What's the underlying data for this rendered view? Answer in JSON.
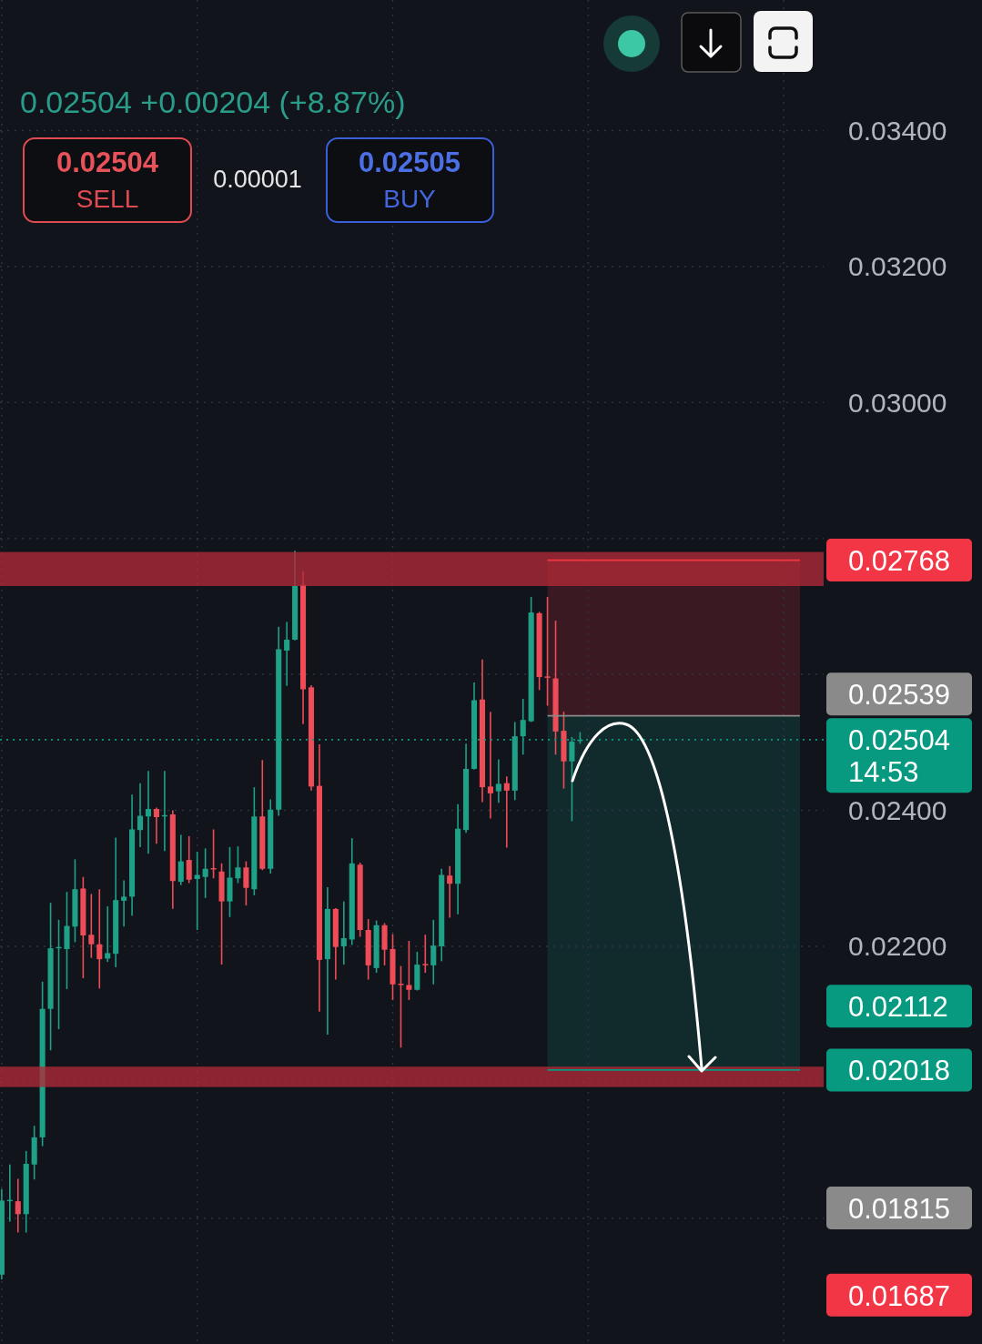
{
  "chart_data": {
    "type": "candlestick",
    "categories": [
      null,
      null,
      null,
      null,
      null,
      null,
      null,
      null,
      null,
      null,
      null,
      null,
      null,
      null,
      null,
      null,
      null,
      null,
      null,
      null,
      null,
      null,
      null,
      null,
      null,
      null,
      null,
      null,
      null,
      null,
      null,
      null,
      null,
      null,
      null,
      null,
      null,
      null,
      null,
      null,
      null,
      null,
      null,
      null,
      null,
      null,
      null,
      null,
      null,
      null,
      null,
      null,
      null,
      null,
      null,
      null,
      null,
      null,
      null,
      null,
      null,
      null,
      null,
      null,
      null,
      null,
      null,
      null,
      null,
      null,
      null,
      null,
      null,
      null,
      null,
      null,
      null,
      null,
      null,
      null,
      null,
      null,
      null,
      null,
      null,
      null,
      null,
      null,
      null,
      null,
      null,
      null,
      null,
      null,
      null,
      null,
      null,
      null,
      null,
      null,
      null
    ],
    "ohlc": [
      [
        0.01717,
        0.01843,
        0.0171,
        0.01826
      ],
      [
        0.01826,
        0.01879,
        0.01795,
        0.01827
      ],
      [
        0.01825,
        0.01858,
        0.01779,
        0.01806
      ],
      [
        0.01806,
        0.01899,
        0.01779,
        0.0188
      ],
      [
        0.01879,
        0.01936,
        0.01857,
        0.01919
      ],
      [
        0.01919,
        0.02148,
        0.01906,
        0.02108
      ],
      [
        0.02108,
        0.02264,
        0.02047,
        0.02197
      ],
      [
        0.02197,
        0.02239,
        0.02078,
        0.02199
      ],
      [
        0.02196,
        0.0228,
        0.02137,
        0.0223
      ],
      [
        0.02229,
        0.02328,
        0.02206,
        0.02284
      ],
      [
        0.02285,
        0.02302,
        0.02153,
        0.02216
      ],
      [
        0.02217,
        0.02277,
        0.02183,
        0.02203
      ],
      [
        0.02203,
        0.02284,
        0.02138,
        0.02181
      ],
      [
        0.02182,
        0.02259,
        0.02177,
        0.0219
      ],
      [
        0.02189,
        0.0236,
        0.02169,
        0.02268
      ],
      [
        0.02267,
        0.02297,
        0.02229,
        0.02273
      ],
      [
        0.02273,
        0.02423,
        0.02245,
        0.02372
      ],
      [
        0.02371,
        0.0244,
        0.02346,
        0.02392
      ],
      [
        0.02391,
        0.02458,
        0.02336,
        0.02402
      ],
      [
        0.02402,
        0.02404,
        0.02351,
        0.0239
      ],
      [
        0.02392,
        0.02458,
        0.0234,
        0.02393
      ],
      [
        0.02394,
        0.024,
        0.02255,
        0.02296
      ],
      [
        0.02295,
        0.02364,
        0.0229,
        0.02325
      ],
      [
        0.02327,
        0.02362,
        0.02293,
        0.02298
      ],
      [
        0.02299,
        0.02339,
        0.02224,
        0.02305
      ],
      [
        0.02302,
        0.02344,
        0.02271,
        0.02314
      ],
      [
        0.02315,
        0.02372,
        0.023,
        0.02313
      ],
      [
        0.0231,
        0.02322,
        0.02173,
        0.02266
      ],
      [
        0.02266,
        0.02346,
        0.02243,
        0.02301
      ],
      [
        0.023,
        0.02347,
        0.02293,
        0.02316
      ],
      [
        0.02316,
        0.02325,
        0.0226,
        0.02286
      ],
      [
        0.02284,
        0.02434,
        0.02275,
        0.02391
      ],
      [
        0.02391,
        0.02474,
        0.02312,
        0.02314
      ],
      [
        0.02314,
        0.02416,
        0.02307,
        0.02401
      ],
      [
        0.02401,
        0.0267,
        0.02392,
        0.02637
      ],
      [
        0.02635,
        0.02677,
        0.02583,
        0.02651
      ],
      [
        0.02651,
        0.02782,
        0.0265,
        0.0273
      ],
      [
        0.02732,
        0.02752,
        0.02527,
        0.02578
      ],
      [
        0.02581,
        0.02584,
        0.02429,
        0.02435
      ],
      [
        0.02436,
        0.02497,
        0.02104,
        0.0218
      ],
      [
        0.02181,
        0.02287,
        0.0207,
        0.02255
      ],
      [
        0.02255,
        0.02256,
        0.02151,
        0.02199
      ],
      [
        0.022,
        0.02266,
        0.02173,
        0.02212
      ],
      [
        0.0221,
        0.02359,
        0.02202,
        0.02322
      ],
      [
        0.0232,
        0.02323,
        0.02214,
        0.02224
      ],
      [
        0.02224,
        0.0224,
        0.02151,
        0.02172
      ],
      [
        0.02168,
        0.02238,
        0.02161,
        0.02231
      ],
      [
        0.02231,
        0.02234,
        0.02172,
        0.02195
      ],
      [
        0.02196,
        0.02218,
        0.02121,
        0.02144
      ],
      [
        0.02145,
        0.02171,
        0.02051,
        0.02143
      ],
      [
        0.02143,
        0.02208,
        0.02121,
        0.02136
      ],
      [
        0.02136,
        0.02192,
        0.02135,
        0.02173
      ],
      [
        0.02174,
        0.02217,
        0.02161,
        0.02172
      ],
      [
        0.02172,
        0.02239,
        0.02144,
        0.02201
      ],
      [
        0.022,
        0.02314,
        0.02178,
        0.02305
      ],
      [
        0.02304,
        0.02318,
        0.02242,
        0.02292
      ],
      [
        0.02292,
        0.02409,
        0.02247,
        0.02373
      ],
      [
        0.02371,
        0.02498,
        0.02367,
        0.02461
      ],
      [
        0.02461,
        0.02588,
        0.0246,
        0.02562
      ],
      [
        0.02563,
        0.02622,
        0.02412,
        0.02434
      ],
      [
        0.02435,
        0.02545,
        0.02388,
        0.02425
      ],
      [
        0.02428,
        0.02475,
        0.02411,
        0.02439
      ],
      [
        0.0244,
        0.0245,
        0.02345,
        0.02429
      ],
      [
        0.02429,
        0.0253,
        0.02415,
        0.02509
      ],
      [
        0.02509,
        0.02564,
        0.02482,
        0.02533
      ],
      [
        0.02531,
        0.02714,
        0.0253,
        0.02691
      ],
      [
        0.0269,
        0.02692,
        0.02577,
        0.02596
      ],
      [
        0.02597,
        0.02714,
        0.02554,
        0.02596
      ],
      [
        0.02594,
        0.02679,
        0.02482,
        0.02516
      ],
      [
        0.02517,
        0.02545,
        0.02432,
        0.02472
      ],
      [
        0.02472,
        0.02508,
        0.02384,
        0.02501
      ],
      [
        0.02503,
        0.02515,
        0.02498,
        0.02504
      ],
      null,
      null,
      null,
      null,
      null,
      null,
      null,
      null,
      null,
      null,
      null,
      null,
      null,
      null,
      null,
      null,
      null,
      null,
      null,
      null,
      null,
      null,
      null,
      null,
      null,
      null,
      null,
      null,
      null
    ],
    "colors": [
      "#1fa188",
      "#1fa188",
      "#ee4c57",
      "#1fa188",
      "#1fa188",
      "#1fa188",
      "#1fa188",
      "#1fa188",
      "#1fa188",
      "#1fa188",
      "#ee4c57",
      "#ee4c57",
      "#ee4c57",
      "#1fa188",
      "#1fa188",
      "#1fa188",
      "#1fa188",
      "#1fa188",
      "#1fa188",
      "#ee4c57",
      "#1fa188",
      "#ee4c57",
      "#1fa188",
      "#ee4c57",
      "#1fa188",
      "#1fa188",
      "#ee4c57",
      "#ee4c57",
      "#1fa188",
      "#1fa188",
      "#ee4c57",
      "#1fa188",
      "#ee4c57",
      "#1fa188",
      "#1fa188",
      "#1fa188",
      "#1fa188",
      "#ee4c57",
      "#ee4c57",
      "#ee4c57",
      "#1fa188",
      "#ee4c57",
      "#1fa188",
      "#1fa188",
      "#ee4c57",
      "#ee4c57",
      "#1fa188",
      "#ee4c57",
      "#ee4c57",
      "#ee4c57",
      "#ee4c57",
      "#1fa188",
      "#ee4c57",
      "#1fa188",
      "#1fa188",
      "#ee4c57",
      "#1fa188",
      "#1fa188",
      "#1fa188",
      "#ee4c57",
      "#ee4c57",
      "#1fa188",
      "#ee4c57",
      "#1fa188",
      "#1fa188",
      "#1fa188",
      "#ee4c57",
      "#ee4c57",
      "#ee4c57",
      "#ee4c57",
      "#1fa188",
      "#1fa188",
      null,
      null,
      null,
      null,
      null,
      null,
      null,
      null,
      null,
      null,
      null,
      null,
      null,
      null,
      null,
      null,
      null,
      null,
      null,
      null,
      null,
      null,
      null,
      null,
      null,
      null,
      null,
      null,
      null
    ],
    "ylim": [
      0.01615,
      0.03592
    ],
    "yticks": [
      {
        "value": 0.034,
        "label": "0.03400"
      },
      {
        "value": 0.032,
        "label": "0.03200"
      },
      {
        "value": 0.03,
        "label": "0.03000"
      },
      {
        "value": 0.028,
        "label": null
      },
      {
        "value": 0.026,
        "label": null
      },
      {
        "value": 0.024,
        "label": "0.02400"
      },
      {
        "value": 0.022,
        "label": "0.02200"
      },
      {
        "value": 0.02,
        "label": null
      },
      {
        "value": 0.018,
        "label": null
      }
    ],
    "tick_labels": "y",
    "grid": true,
    "bands": [
      {
        "axis": "y",
        "from": 0.0273,
        "to": 0.0278,
        "color": "#b02a37"
      },
      {
        "axis": "y",
        "from": 0.01993,
        "to": 0.02023,
        "color": "#b02a37"
      },
      {
        "axis": "y",
        "from": 0.02539,
        "to": 0.02768,
        "color": "#3a1922"
      },
      {
        "axis": "y",
        "from": 0.02018,
        "to": 0.02539,
        "color": "#112a2c"
      }
    ],
    "ref_lines": [
      {
        "axis": "y",
        "value": 0.02768,
        "label": "0.02768",
        "color": "#f23645",
        "line_style": "solid"
      },
      {
        "axis": "y",
        "value": 0.02539,
        "label": "0.02539",
        "color": "#8a8a8a",
        "line_style": "solid"
      },
      {
        "axis": "y",
        "value": 0.02504,
        "label": "0.02504 14:53",
        "color": "#089981",
        "line_style": "dotted"
      },
      {
        "axis": "y",
        "value": 0.02018,
        "label": "0.02018",
        "color": "#089981",
        "line_style": "solid"
      }
    ],
    "annotations": [
      "0.02504 +0.00204 (+8.87%)",
      "0.02504",
      "SELL",
      "0.00001",
      "0.02505",
      "BUY",
      "0.02112",
      "0.01815",
      "0.01687"
    ]
  }
}
